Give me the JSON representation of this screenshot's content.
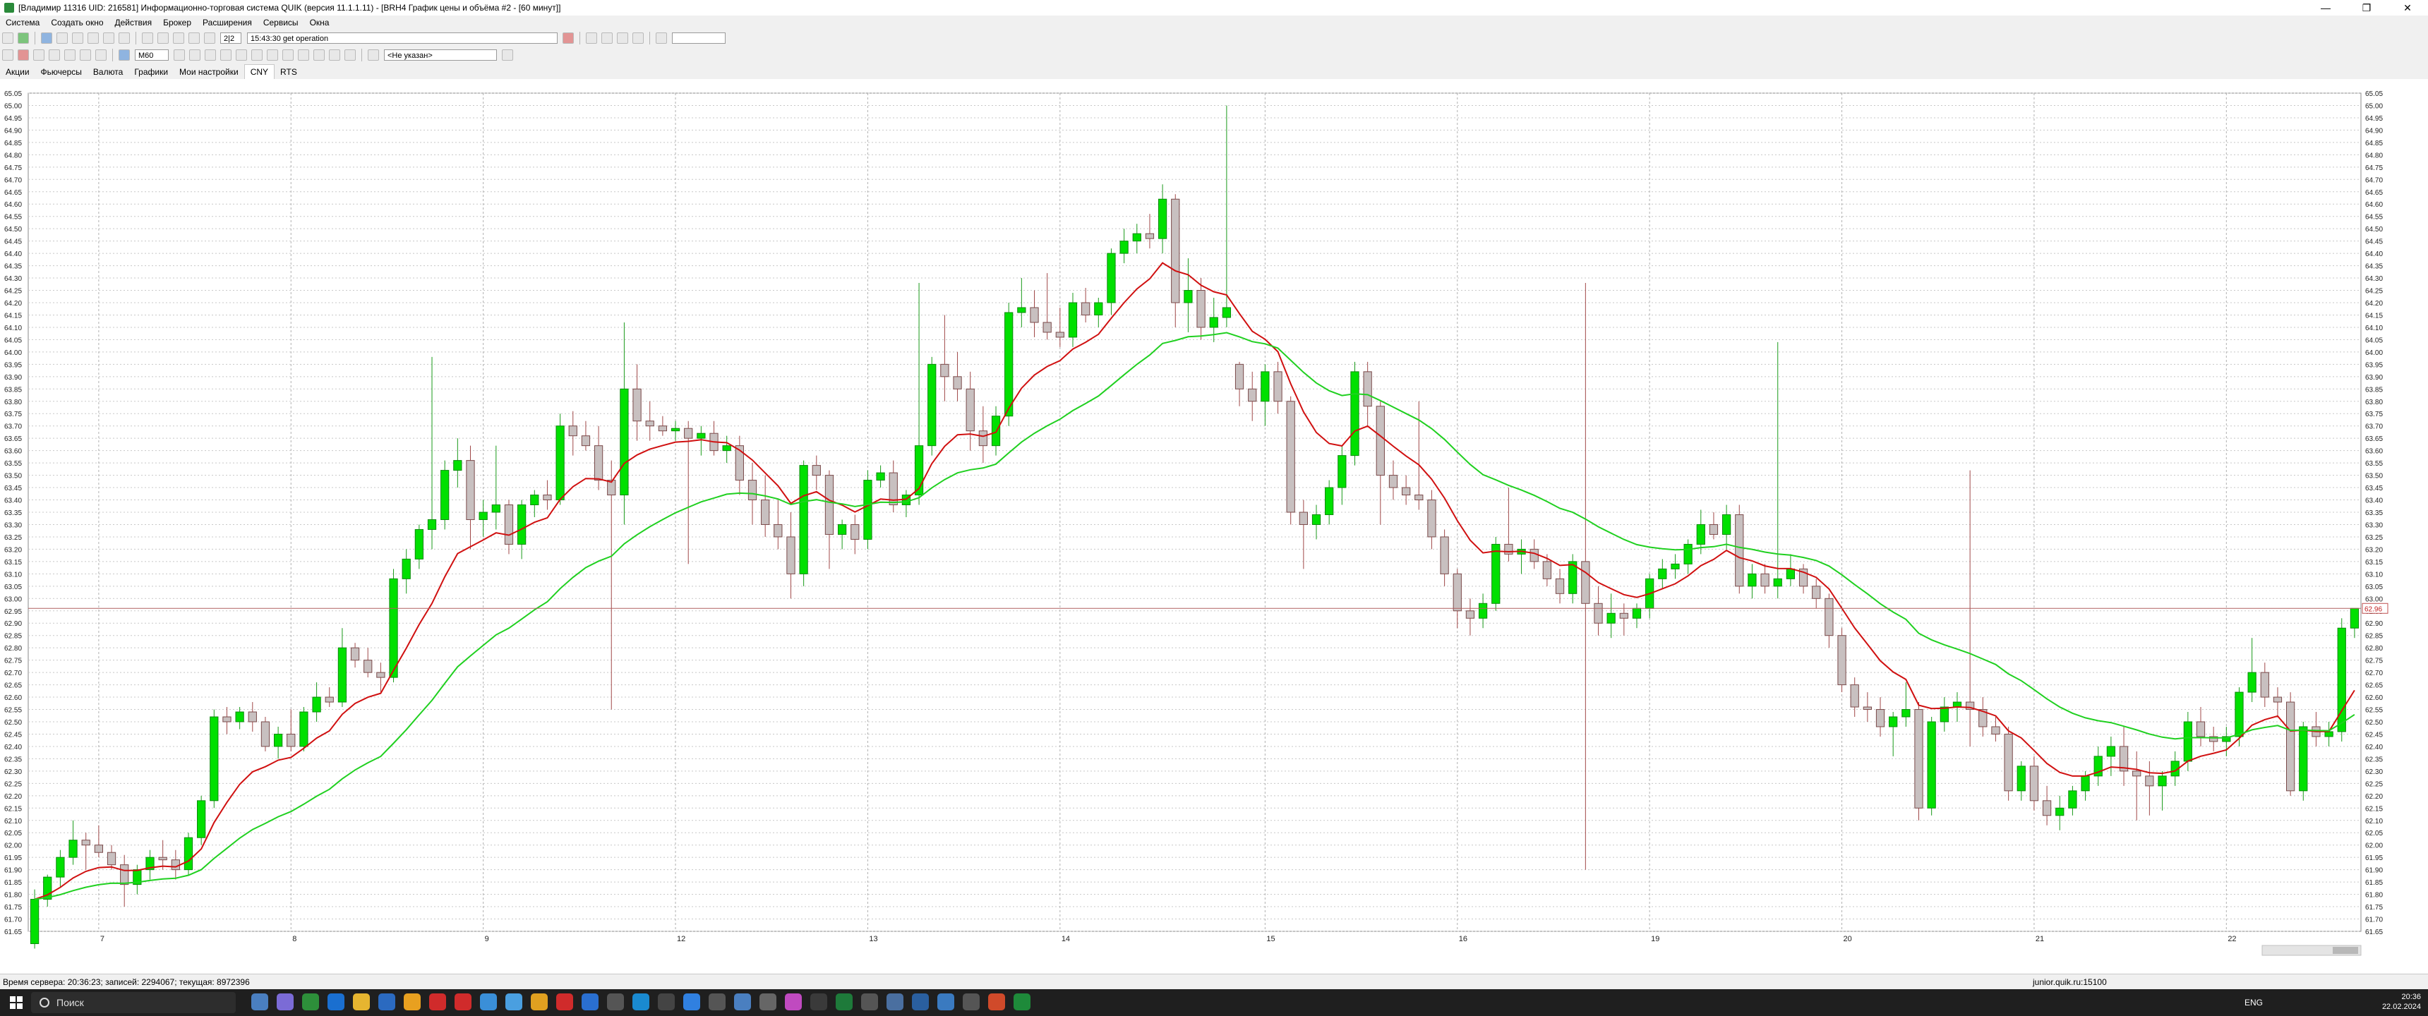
{
  "window": {
    "title": "[Владимир 11316 UID: 216581] Информационно-торговая система QUIK (версия 11.1.1.11) - [BRH4 График цены и объёма #2 - [60 минут]]",
    "controls": [
      "—",
      "❐",
      "✕"
    ]
  },
  "menu": [
    "Система",
    "Создать окно",
    "Действия",
    "Брокер",
    "Расширения",
    "Сервисы",
    "Окна"
  ],
  "toolbar": {
    "counter": "2|2",
    "log_message": "15:43:30  get operation",
    "interval": "M60",
    "indicator_select": "<Не указан>",
    "search_value": ""
  },
  "tabs": [
    "Акции",
    "Фьючерсы",
    "Валюта",
    "Графики",
    "Мои настройки",
    "CNY",
    "RTS"
  ],
  "active_tab": "CNY",
  "chart_data": {
    "type": "candlestick",
    "instrument": "BRH4",
    "timeframe": "60 минут",
    "ylim": [
      61.65,
      65.05
    ],
    "y_tick_step": 0.05,
    "x_tick_labels": [
      "7",
      "8",
      "9",
      "12",
      "13",
      "14",
      "15",
      "16",
      "19",
      "20",
      "21",
      "22"
    ],
    "last_price": "62.96",
    "colors": {
      "up": "#00e000",
      "down": "#c8c0c0",
      "ma_fast": "#d01010",
      "ma_slow": "#20d020",
      "last_line": "#b06060"
    },
    "candles": [
      [
        61.6,
        61.82,
        61.58,
        61.78
      ],
      [
        61.78,
        61.88,
        61.75,
        61.87
      ],
      [
        61.87,
        61.98,
        61.83,
        61.95
      ],
      [
        61.95,
        62.1,
        61.92,
        62.02
      ],
      [
        62.02,
        62.05,
        61.9,
        62.0
      ],
      [
        62.0,
        62.08,
        61.95,
        61.97
      ],
      [
        61.97,
        62.0,
        61.9,
        61.92
      ],
      [
        61.92,
        61.96,
        61.75,
        61.84
      ],
      [
        61.84,
        61.92,
        61.8,
        61.9
      ],
      [
        61.9,
        61.98,
        61.86,
        61.95
      ],
      [
        61.95,
        62.02,
        61.9,
        61.94
      ],
      [
        61.94,
        61.98,
        61.86,
        61.9
      ],
      [
        61.9,
        62.05,
        61.88,
        62.03
      ],
      [
        62.03,
        62.2,
        62.0,
        62.18
      ],
      [
        62.18,
        62.55,
        62.15,
        62.52
      ],
      [
        62.52,
        62.56,
        62.45,
        62.5
      ],
      [
        62.5,
        62.56,
        62.47,
        62.54
      ],
      [
        62.54,
        62.58,
        62.46,
        62.5
      ],
      [
        62.5,
        62.52,
        62.38,
        62.4
      ],
      [
        62.4,
        62.48,
        62.35,
        62.45
      ],
      [
        62.45,
        62.55,
        62.38,
        62.4
      ],
      [
        62.4,
        62.56,
        62.38,
        62.54
      ],
      [
        62.54,
        62.66,
        62.5,
        62.6
      ],
      [
        62.6,
        62.64,
        62.56,
        62.58
      ],
      [
        62.58,
        62.88,
        62.56,
        62.8
      ],
      [
        62.8,
        62.82,
        62.72,
        62.75
      ],
      [
        62.75,
        62.8,
        62.68,
        62.7
      ],
      [
        62.7,
        62.74,
        62.62,
        62.68
      ],
      [
        62.68,
        63.12,
        62.66,
        63.08
      ],
      [
        63.08,
        63.2,
        63.02,
        63.16
      ],
      [
        63.16,
        63.3,
        63.12,
        63.28
      ],
      [
        63.28,
        63.98,
        63.2,
        63.32
      ],
      [
        63.32,
        63.56,
        63.28,
        63.52
      ],
      [
        63.52,
        63.65,
        63.45,
        63.56
      ],
      [
        63.56,
        63.62,
        63.2,
        63.32
      ],
      [
        63.32,
        63.4,
        63.25,
        63.35
      ],
      [
        63.35,
        63.62,
        63.28,
        63.38
      ],
      [
        63.38,
        63.4,
        63.18,
        63.22
      ],
      [
        63.22,
        63.4,
        63.16,
        63.38
      ],
      [
        63.38,
        63.44,
        63.33,
        63.42
      ],
      [
        63.42,
        63.48,
        63.36,
        63.4
      ],
      [
        63.4,
        63.75,
        63.38,
        63.7
      ],
      [
        63.7,
        63.76,
        63.58,
        63.66
      ],
      [
        63.66,
        63.72,
        63.6,
        63.62
      ],
      [
        63.62,
        63.7,
        63.44,
        63.48
      ],
      [
        63.48,
        63.56,
        62.55,
        63.42
      ],
      [
        63.42,
        64.12,
        63.3,
        63.85
      ],
      [
        63.85,
        63.95,
        63.64,
        63.72
      ],
      [
        63.72,
        63.8,
        63.64,
        63.7
      ],
      [
        63.7,
        63.74,
        63.66,
        63.68
      ],
      [
        63.68,
        63.72,
        63.64,
        63.69
      ],
      [
        63.69,
        63.72,
        63.14,
        63.65
      ],
      [
        63.65,
        63.7,
        63.58,
        63.67
      ],
      [
        63.67,
        63.72,
        63.58,
        63.6
      ],
      [
        63.6,
        63.66,
        63.55,
        63.62
      ],
      [
        63.62,
        63.66,
        63.42,
        63.48
      ],
      [
        63.48,
        63.55,
        63.3,
        63.4
      ],
      [
        63.4,
        63.5,
        63.25,
        63.3
      ],
      [
        63.3,
        63.4,
        63.2,
        63.25
      ],
      [
        63.25,
        63.35,
        63.0,
        63.1
      ],
      [
        63.1,
        63.56,
        63.05,
        63.54
      ],
      [
        63.54,
        63.58,
        63.44,
        63.5
      ],
      [
        63.5,
        63.52,
        63.12,
        63.26
      ],
      [
        63.26,
        63.32,
        63.2,
        63.3
      ],
      [
        63.3,
        63.34,
        63.18,
        63.24
      ],
      [
        63.24,
        63.52,
        63.2,
        63.48
      ],
      [
        63.48,
        63.54,
        63.45,
        63.51
      ],
      [
        63.51,
        63.56,
        63.35,
        63.38
      ],
      [
        63.38,
        63.44,
        63.33,
        63.42
      ],
      [
        63.42,
        64.28,
        63.38,
        63.62
      ],
      [
        63.62,
        63.98,
        63.58,
        63.95
      ],
      [
        63.95,
        64.15,
        63.8,
        63.9
      ],
      [
        63.9,
        64.0,
        63.8,
        63.85
      ],
      [
        63.85,
        63.92,
        63.6,
        63.68
      ],
      [
        63.68,
        63.78,
        63.55,
        63.62
      ],
      [
        63.62,
        63.78,
        63.58,
        63.74
      ],
      [
        63.74,
        64.2,
        63.7,
        64.16
      ],
      [
        64.16,
        64.3,
        64.1,
        64.18
      ],
      [
        64.18,
        64.25,
        64.06,
        64.12
      ],
      [
        64.12,
        64.32,
        64.05,
        64.08
      ],
      [
        64.08,
        64.18,
        64.02,
        64.06
      ],
      [
        64.06,
        64.24,
        64.02,
        64.2
      ],
      [
        64.2,
        64.26,
        64.12,
        64.15
      ],
      [
        64.15,
        64.22,
        64.1,
        64.2
      ],
      [
        64.2,
        64.42,
        64.15,
        64.4
      ],
      [
        64.4,
        64.5,
        64.36,
        64.45
      ],
      [
        64.45,
        64.52,
        64.4,
        64.48
      ],
      [
        64.48,
        64.56,
        64.42,
        64.46
      ],
      [
        64.46,
        64.68,
        64.4,
        64.62
      ],
      [
        64.62,
        64.64,
        64.1,
        64.2
      ],
      [
        64.2,
        64.38,
        64.08,
        64.25
      ],
      [
        64.25,
        64.3,
        64.05,
        64.1
      ],
      [
        64.1,
        64.22,
        64.04,
        64.14
      ],
      [
        64.14,
        65.0,
        64.1,
        64.18
      ],
      [
        63.95,
        63.96,
        63.78,
        63.85
      ],
      [
        63.85,
        63.92,
        63.72,
        63.8
      ],
      [
        63.8,
        63.95,
        63.7,
        63.92
      ],
      [
        63.92,
        63.96,
        63.75,
        63.8
      ],
      [
        63.8,
        63.82,
        63.3,
        63.35
      ],
      [
        63.35,
        63.4,
        63.12,
        63.3
      ],
      [
        63.3,
        63.38,
        63.24,
        63.34
      ],
      [
        63.34,
        63.48,
        63.3,
        63.45
      ],
      [
        63.45,
        63.62,
        63.38,
        63.58
      ],
      [
        63.58,
        63.96,
        63.54,
        63.92
      ],
      [
        63.92,
        63.96,
        63.7,
        63.78
      ],
      [
        63.78,
        63.8,
        63.3,
        63.5
      ],
      [
        63.5,
        63.56,
        63.4,
        63.45
      ],
      [
        63.45,
        63.5,
        63.38,
        63.42
      ],
      [
        63.42,
        63.8,
        63.36,
        63.4
      ],
      [
        63.4,
        63.44,
        63.2,
        63.25
      ],
      [
        63.25,
        63.28,
        63.05,
        63.1
      ],
      [
        63.1,
        63.12,
        62.88,
        62.95
      ],
      [
        62.95,
        63.0,
        62.85,
        62.92
      ],
      [
        62.92,
        63.02,
        62.88,
        62.98
      ],
      [
        62.98,
        63.25,
        62.95,
        63.22
      ],
      [
        63.22,
        63.45,
        63.15,
        63.18
      ],
      [
        63.18,
        63.24,
        63.1,
        63.2
      ],
      [
        63.2,
        63.24,
        63.12,
        63.15
      ],
      [
        63.15,
        63.18,
        63.05,
        63.08
      ],
      [
        63.08,
        63.12,
        62.98,
        63.02
      ],
      [
        63.02,
        63.18,
        62.98,
        63.15
      ],
      [
        63.15,
        64.28,
        61.9,
        62.98
      ],
      [
        62.98,
        63.05,
        62.85,
        62.9
      ],
      [
        62.9,
        63.02,
        62.84,
        62.94
      ],
      [
        62.94,
        62.98,
        62.85,
        62.92
      ],
      [
        62.92,
        62.98,
        62.88,
        62.96
      ],
      [
        62.96,
        63.1,
        62.92,
        63.08
      ],
      [
        63.08,
        63.16,
        63.04,
        63.12
      ],
      [
        63.12,
        63.18,
        63.08,
        63.14
      ],
      [
        63.14,
        63.24,
        63.1,
        63.22
      ],
      [
        63.22,
        63.36,
        63.18,
        63.3
      ],
      [
        63.3,
        63.35,
        63.24,
        63.26
      ],
      [
        63.26,
        63.38,
        63.2,
        63.34
      ],
      [
        63.34,
        63.38,
        63.02,
        63.05
      ],
      [
        63.05,
        63.14,
        63.0,
        63.1
      ],
      [
        63.1,
        63.14,
        63.02,
        63.05
      ],
      [
        63.05,
        64.04,
        63.0,
        63.08
      ],
      [
        63.08,
        63.18,
        63.05,
        63.12
      ],
      [
        63.12,
        63.14,
        63.02,
        63.05
      ],
      [
        63.05,
        63.08,
        62.96,
        63.0
      ],
      [
        63.0,
        63.02,
        62.8,
        62.85
      ],
      [
        62.85,
        62.88,
        62.62,
        62.65
      ],
      [
        62.65,
        62.68,
        62.52,
        62.56
      ],
      [
        62.56,
        62.62,
        62.5,
        62.55
      ],
      [
        62.55,
        62.6,
        62.44,
        62.48
      ],
      [
        62.48,
        62.54,
        62.36,
        62.52
      ],
      [
        62.52,
        62.66,
        62.48,
        62.55
      ],
      [
        62.55,
        62.58,
        62.1,
        62.15
      ],
      [
        62.15,
        62.52,
        62.12,
        62.5
      ],
      [
        62.5,
        62.6,
        62.46,
        62.56
      ],
      [
        62.56,
        62.62,
        62.5,
        62.58
      ],
      [
        62.58,
        63.52,
        62.4,
        62.55
      ],
      [
        62.55,
        62.6,
        62.44,
        62.48
      ],
      [
        62.48,
        62.52,
        62.42,
        62.45
      ],
      [
        62.45,
        62.48,
        62.18,
        62.22
      ],
      [
        62.22,
        62.34,
        62.18,
        62.32
      ],
      [
        62.32,
        62.36,
        62.14,
        62.18
      ],
      [
        62.18,
        62.24,
        62.08,
        62.12
      ],
      [
        62.12,
        62.2,
        62.06,
        62.15
      ],
      [
        62.15,
        62.24,
        62.12,
        62.22
      ],
      [
        62.22,
        62.3,
        62.18,
        62.28
      ],
      [
        62.28,
        62.4,
        62.24,
        62.36
      ],
      [
        62.36,
        62.44,
        62.28,
        62.4
      ],
      [
        62.4,
        62.48,
        62.24,
        62.3
      ],
      [
        62.3,
        62.38,
        62.1,
        62.28
      ],
      [
        62.28,
        62.34,
        62.12,
        62.24
      ],
      [
        62.24,
        62.3,
        62.14,
        62.28
      ],
      [
        62.28,
        62.38,
        62.24,
        62.34
      ],
      [
        62.34,
        62.54,
        62.3,
        62.5
      ],
      [
        62.5,
        62.56,
        62.4,
        62.44
      ],
      [
        62.44,
        62.48,
        62.38,
        62.42
      ],
      [
        62.42,
        62.48,
        62.36,
        62.44
      ],
      [
        62.44,
        62.64,
        62.4,
        62.62
      ],
      [
        62.62,
        62.84,
        62.58,
        62.7
      ],
      [
        62.7,
        62.74,
        62.56,
        62.6
      ],
      [
        62.6,
        62.64,
        62.52,
        62.58
      ],
      [
        62.58,
        62.62,
        62.2,
        62.22
      ],
      [
        62.22,
        62.5,
        62.18,
        62.48
      ],
      [
        62.48,
        62.54,
        62.4,
        62.44
      ],
      [
        62.44,
        62.5,
        62.4,
        62.46
      ],
      [
        62.46,
        62.92,
        62.42,
        62.88
      ],
      [
        62.88,
        62.96,
        62.84,
        62.96
      ]
    ]
  },
  "status": {
    "server_time": "Время сервера: 20:36:23; записей: 2294067; текущая: 8972396",
    "connection": "junior.quik.ru:15100"
  },
  "taskbar": {
    "search_placeholder": "Поиск",
    "lang": "ENG",
    "time": "20:36",
    "date": "22.02.2024"
  }
}
